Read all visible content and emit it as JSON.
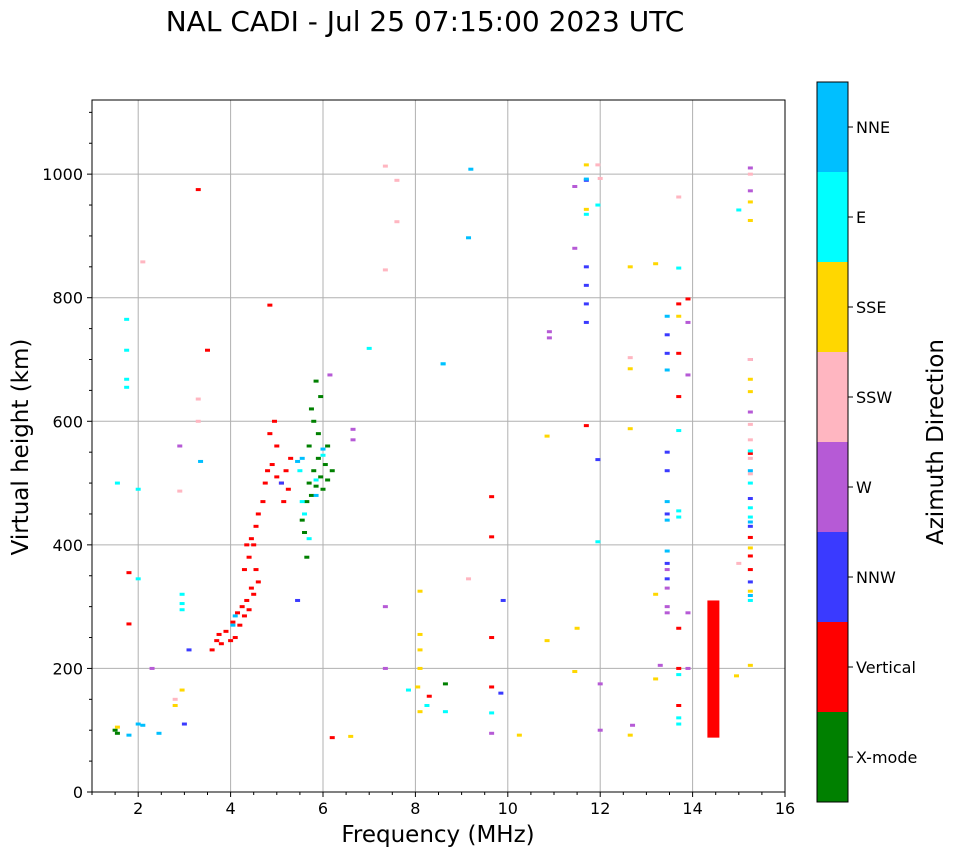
{
  "chart_data": {
    "type": "scatter",
    "title": "NAL CADI - Jul 25 07:15:00 2023 UTC",
    "xlabel": "Frequency (MHz)",
    "ylabel": "Virtual height (km)",
    "xlim": [
      1,
      16
    ],
    "ylim": [
      0,
      1120
    ],
    "grid": true,
    "x_ticks": [
      2,
      4,
      6,
      8,
      10,
      12,
      14,
      16
    ],
    "y_ticks": [
      0,
      200,
      400,
      600,
      800,
      1000
    ],
    "colorbar": {
      "label": "Azimuth Direction",
      "categories": [
        {
          "name": "X-mode",
          "color": "#008000"
        },
        {
          "name": "Vertical",
          "color": "#ff0000"
        },
        {
          "name": "NNW",
          "color": "#3a3aff"
        },
        {
          "name": "W",
          "color": "#b65ad6"
        },
        {
          "name": "SSW",
          "color": "#ffb6c1"
        },
        {
          "name": "SSE",
          "color": "#ffd700"
        },
        {
          "name": "E",
          "color": "#00ffff"
        },
        {
          "name": "NNE",
          "color": "#00bfff"
        }
      ]
    },
    "series": [
      {
        "name": "X-mode",
        "points": [
          [
            5.55,
            440
          ],
          [
            5.6,
            420
          ],
          [
            5.65,
            470
          ],
          [
            5.7,
            500
          ],
          [
            5.75,
            480
          ],
          [
            5.8,
            520
          ],
          [
            5.85,
            495
          ],
          [
            5.9,
            540
          ],
          [
            5.95,
            510
          ],
          [
            6.0,
            490
          ],
          [
            6.05,
            530
          ],
          [
            6.1,
            505
          ],
          [
            6.2,
            520
          ],
          [
            5.8,
            600
          ],
          [
            5.9,
            580
          ],
          [
            5.75,
            620
          ],
          [
            5.85,
            665
          ],
          [
            5.95,
            640
          ],
          [
            8.65,
            175
          ],
          [
            6.1,
            560
          ],
          [
            5.65,
            380
          ],
          [
            5.7,
            560
          ],
          [
            1.5,
            100
          ],
          [
            1.55,
            95
          ]
        ]
      },
      {
        "name": "Vertical",
        "points": [
          [
            3.6,
            230
          ],
          [
            3.7,
            245
          ],
          [
            3.75,
            255
          ],
          [
            3.8,
            240
          ],
          [
            3.9,
            260
          ],
          [
            4.0,
            245
          ],
          [
            4.05,
            275
          ],
          [
            4.1,
            250
          ],
          [
            4.15,
            290
          ],
          [
            4.2,
            270
          ],
          [
            4.25,
            300
          ],
          [
            4.3,
            285
          ],
          [
            4.35,
            310
          ],
          [
            4.4,
            295
          ],
          [
            4.45,
            330
          ],
          [
            4.5,
            320
          ],
          [
            4.55,
            360
          ],
          [
            4.6,
            340
          ],
          [
            4.4,
            380
          ],
          [
            4.5,
            400
          ],
          [
            4.55,
            430
          ],
          [
            4.6,
            450
          ],
          [
            4.7,
            470
          ],
          [
            4.75,
            500
          ],
          [
            4.8,
            520
          ],
          [
            4.9,
            530
          ],
          [
            5.0,
            510
          ],
          [
            5.1,
            500
          ],
          [
            5.2,
            520
          ],
          [
            5.3,
            540
          ],
          [
            5.0,
            560
          ],
          [
            4.95,
            600
          ],
          [
            4.85,
            580
          ],
          [
            5.15,
            470
          ],
          [
            5.25,
            490
          ],
          [
            4.3,
            360
          ],
          [
            4.35,
            400
          ],
          [
            4.45,
            410
          ],
          [
            3.5,
            715
          ],
          [
            3.3,
            975
          ],
          [
            1.8,
            355
          ],
          [
            1.8,
            272
          ],
          [
            4.85,
            788
          ],
          [
            6.2,
            88
          ],
          [
            8.3,
            155
          ],
          [
            9.65,
            413
          ],
          [
            9.65,
            478
          ],
          [
            9.65,
            250
          ],
          [
            9.65,
            170
          ],
          [
            11.7,
            593
          ],
          [
            13.7,
            265
          ],
          [
            13.7,
            200
          ],
          [
            13.7,
            140
          ],
          [
            13.7,
            640
          ],
          [
            13.7,
            710
          ],
          [
            13.7,
            790
          ],
          [
            13.9,
            798
          ],
          [
            15.25,
            360
          ],
          [
            15.25,
            412
          ],
          [
            15.25,
            382
          ],
          [
            15.25,
            548
          ]
        ]
      },
      {
        "name": "NNW",
        "points": [
          [
            11.7,
            760
          ],
          [
            11.7,
            790
          ],
          [
            11.7,
            820
          ],
          [
            11.7,
            850
          ],
          [
            11.7,
            990
          ],
          [
            13.45,
            740
          ],
          [
            13.45,
            710
          ],
          [
            13.45,
            550
          ],
          [
            13.45,
            520
          ],
          [
            13.45,
            450
          ],
          [
            13.45,
            370
          ],
          [
            13.45,
            345
          ],
          [
            15.25,
            475
          ],
          [
            15.25,
            340
          ],
          [
            15.25,
            430
          ],
          [
            9.85,
            160
          ],
          [
            9.9,
            310
          ],
          [
            11.95,
            538
          ],
          [
            3.1,
            230
          ],
          [
            3.0,
            110
          ],
          [
            5.1,
            500
          ],
          [
            5.45,
            310
          ]
        ]
      },
      {
        "name": "W",
        "points": [
          [
            10.9,
            745
          ],
          [
            10.9,
            735
          ],
          [
            11.45,
            880
          ],
          [
            11.45,
            980
          ],
          [
            13.45,
            330
          ],
          [
            13.45,
            300
          ],
          [
            13.45,
            290
          ],
          [
            13.45,
            360
          ],
          [
            15.25,
            1010
          ],
          [
            15.25,
            973
          ],
          [
            15.25,
            700
          ],
          [
            15.25,
            615
          ],
          [
            13.9,
            760
          ],
          [
            13.9,
            675
          ],
          [
            13.9,
            290
          ],
          [
            6.65,
            587
          ],
          [
            6.65,
            570
          ],
          [
            6.15,
            675
          ],
          [
            7.35,
            300
          ],
          [
            7.35,
            200
          ],
          [
            2.3,
            200
          ],
          [
            2.9,
            560
          ],
          [
            9.65,
            95
          ],
          [
            12.0,
            175
          ],
          [
            12.0,
            100
          ],
          [
            12.7,
            108
          ],
          [
            13.3,
            205
          ],
          [
            13.9,
            200
          ]
        ]
      },
      {
        "name": "SSW",
        "points": [
          [
            7.35,
            1013
          ],
          [
            7.6,
            990
          ],
          [
            7.6,
            923
          ],
          [
            7.35,
            845
          ],
          [
            2.1,
            858
          ],
          [
            3.3,
            636
          ],
          [
            3.3,
            600
          ],
          [
            9.15,
            345
          ],
          [
            12.65,
            703
          ],
          [
            15.25,
            595
          ],
          [
            15.25,
            570
          ],
          [
            15.25,
            540
          ],
          [
            15.25,
            515
          ],
          [
            15.0,
            370
          ],
          [
            15.25,
            1000
          ],
          [
            15.25,
            700
          ],
          [
            2.8,
            150
          ],
          [
            2.9,
            487
          ],
          [
            11.95,
            1015
          ],
          [
            12.0,
            993
          ],
          [
            13.7,
            963
          ]
        ]
      },
      {
        "name": "SSE",
        "points": [
          [
            11.7,
            1015
          ],
          [
            11.7,
            943
          ],
          [
            12.65,
            850
          ],
          [
            13.2,
            855
          ],
          [
            13.7,
            770
          ],
          [
            12.65,
            685
          ],
          [
            12.65,
            588
          ],
          [
            10.85,
            576
          ],
          [
            15.25,
            955
          ],
          [
            15.25,
            925
          ],
          [
            15.25,
            668
          ],
          [
            15.25,
            648
          ],
          [
            15.25,
            395
          ],
          [
            15.25,
            325
          ],
          [
            15.25,
            205
          ],
          [
            14.95,
            188
          ],
          [
            13.2,
            320
          ],
          [
            13.2,
            183
          ],
          [
            12.65,
            92
          ],
          [
            10.25,
            92
          ],
          [
            6.6,
            90
          ],
          [
            8.1,
            325
          ],
          [
            8.1,
            255
          ],
          [
            8.1,
            230
          ],
          [
            8.1,
            200
          ],
          [
            8.05,
            170
          ],
          [
            8.1,
            130
          ],
          [
            10.85,
            245
          ],
          [
            11.45,
            195
          ],
          [
            11.5,
            265
          ],
          [
            2.8,
            140
          ],
          [
            2.95,
            165
          ],
          [
            1.55,
            105
          ]
        ]
      },
      {
        "name": "E",
        "points": [
          [
            2.95,
            320
          ],
          [
            2.95,
            305
          ],
          [
            2.95,
            295
          ],
          [
            1.75,
            765
          ],
          [
            1.75,
            715
          ],
          [
            1.75,
            668
          ],
          [
            1.75,
            655
          ],
          [
            1.55,
            500
          ],
          [
            2.0,
            345
          ],
          [
            2.0,
            490
          ],
          [
            8.6,
            693
          ],
          [
            7.0,
            718
          ],
          [
            11.7,
            935
          ],
          [
            11.95,
            950
          ],
          [
            15.0,
            942
          ],
          [
            13.7,
            848
          ],
          [
            13.7,
            585
          ],
          [
            13.7,
            455
          ],
          [
            13.7,
            445
          ],
          [
            15.25,
            552
          ],
          [
            15.25,
            500
          ],
          [
            15.25,
            460
          ],
          [
            15.25,
            445
          ],
          [
            15.25,
            310
          ],
          [
            13.7,
            190
          ],
          [
            13.7,
            120
          ],
          [
            13.7,
            110
          ],
          [
            11.95,
            405
          ],
          [
            8.65,
            130
          ],
          [
            8.25,
            140
          ],
          [
            7.85,
            165
          ],
          [
            9.65,
            128
          ],
          [
            5.5,
            520
          ],
          [
            5.55,
            470
          ],
          [
            5.6,
            450
          ],
          [
            5.7,
            410
          ],
          [
            5.85,
            505
          ],
          [
            6.0,
            545
          ]
        ]
      },
      {
        "name": "NNE",
        "points": [
          [
            9.2,
            1008
          ],
          [
            9.15,
            897
          ],
          [
            8.6,
            693
          ],
          [
            11.7,
            992
          ],
          [
            13.45,
            770
          ],
          [
            13.45,
            683
          ],
          [
            13.45,
            470
          ],
          [
            13.45,
            440
          ],
          [
            13.45,
            390
          ],
          [
            15.25,
            520
          ],
          [
            15.25,
            437
          ],
          [
            15.25,
            318
          ],
          [
            2.0,
            110
          ],
          [
            2.1,
            108
          ],
          [
            1.8,
            92
          ],
          [
            2.45,
            95
          ],
          [
            3.35,
            535
          ],
          [
            4.05,
            270
          ],
          [
            4.1,
            285
          ],
          [
            5.85,
            480
          ],
          [
            6.0,
            555
          ],
          [
            5.45,
            535
          ],
          [
            5.55,
            540
          ]
        ]
      }
    ],
    "bars": [
      {
        "name": "Vertical",
        "x": 14.45,
        "y_from": 88,
        "y_to": 310
      }
    ]
  }
}
